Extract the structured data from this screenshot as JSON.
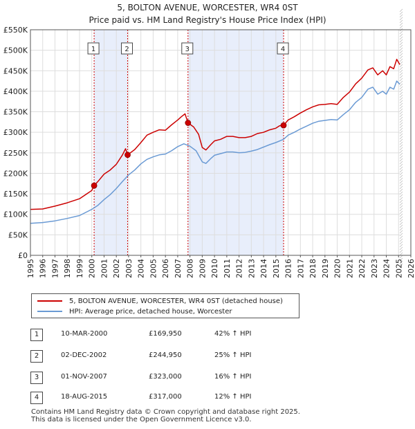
{
  "chart_data": {
    "type": "line",
    "title": "5, BOLTON AVENUE, WORCESTER, WR4 0ST",
    "subtitle": "Price paid vs. HM Land Registry's House Price Index (HPI)",
    "xlabel": "",
    "ylabel": "",
    "xlim": [
      1995,
      2026
    ],
    "ylim": [
      0,
      550000
    ],
    "x_ticks": [
      "1995",
      "1996",
      "1997",
      "1998",
      "1999",
      "2000",
      "2001",
      "2002",
      "2003",
      "2004",
      "2005",
      "2006",
      "2007",
      "2008",
      "2009",
      "2010",
      "2011",
      "2012",
      "2013",
      "2014",
      "2015",
      "2016",
      "2017",
      "2018",
      "2019",
      "2020",
      "2021",
      "2022",
      "2023",
      "2024",
      "2025",
      "2026"
    ],
    "y_ticks": [
      {
        "value": 0,
        "label": "£0"
      },
      {
        "value": 50000,
        "label": "£50K"
      },
      {
        "value": 100000,
        "label": "£100K"
      },
      {
        "value": 150000,
        "label": "£150K"
      },
      {
        "value": 200000,
        "label": "£200K"
      },
      {
        "value": 250000,
        "label": "£250K"
      },
      {
        "value": 300000,
        "label": "£300K"
      },
      {
        "value": 350000,
        "label": "£350K"
      },
      {
        "value": 400000,
        "label": "£400K"
      },
      {
        "value": 450000,
        "label": "£450K"
      },
      {
        "value": 500000,
        "label": "£500K"
      },
      {
        "value": 550000,
        "label": "£550K"
      }
    ],
    "grid": true,
    "series": [
      {
        "name": "5, BOLTON AVENUE, WORCESTER, WR4 0ST (detached house)",
        "color": "#cc0000",
        "points": [
          [
            1995.0,
            112000
          ],
          [
            1996.0,
            113000
          ],
          [
            1997.0,
            120000
          ],
          [
            1998.0,
            128000
          ],
          [
            1999.0,
            138000
          ],
          [
            2000.0,
            158000
          ],
          [
            2000.19,
            169950
          ],
          [
            2000.5,
            180000
          ],
          [
            2001.0,
            198000
          ],
          [
            2001.5,
            208000
          ],
          [
            2002.0,
            222000
          ],
          [
            2002.5,
            245000
          ],
          [
            2002.75,
            260000
          ],
          [
            2002.92,
            244950
          ],
          [
            2003.5,
            258000
          ],
          [
            2004.0,
            275000
          ],
          [
            2004.5,
            293000
          ],
          [
            2005.0,
            300000
          ],
          [
            2005.5,
            306000
          ],
          [
            2006.0,
            305000
          ],
          [
            2006.5,
            318000
          ],
          [
            2007.0,
            330000
          ],
          [
            2007.3,
            338000
          ],
          [
            2007.6,
            345000
          ],
          [
            2007.84,
            323000
          ],
          [
            2008.3,
            313000
          ],
          [
            2008.7,
            295000
          ],
          [
            2009.0,
            263000
          ],
          [
            2009.3,
            257000
          ],
          [
            2009.7,
            270000
          ],
          [
            2010.0,
            279000
          ],
          [
            2010.5,
            283000
          ],
          [
            2011.0,
            290000
          ],
          [
            2011.5,
            290000
          ],
          [
            2012.0,
            287000
          ],
          [
            2012.5,
            287000
          ],
          [
            2013.0,
            290000
          ],
          [
            2013.5,
            297000
          ],
          [
            2014.0,
            300000
          ],
          [
            2014.5,
            306000
          ],
          [
            2015.0,
            310000
          ],
          [
            2015.3,
            316000
          ],
          [
            2015.63,
            317000
          ],
          [
            2016.0,
            330000
          ],
          [
            2016.5,
            338000
          ],
          [
            2017.0,
            347000
          ],
          [
            2017.5,
            355000
          ],
          [
            2018.0,
            362000
          ],
          [
            2018.5,
            367000
          ],
          [
            2019.0,
            368000
          ],
          [
            2019.5,
            370000
          ],
          [
            2020.0,
            368000
          ],
          [
            2020.5,
            385000
          ],
          [
            2021.0,
            398000
          ],
          [
            2021.5,
            418000
          ],
          [
            2022.0,
            432000
          ],
          [
            2022.5,
            452000
          ],
          [
            2022.9,
            457000
          ],
          [
            2023.3,
            440000
          ],
          [
            2023.7,
            450000
          ],
          [
            2024.0,
            440000
          ],
          [
            2024.3,
            460000
          ],
          [
            2024.6,
            455000
          ],
          [
            2024.85,
            478000
          ],
          [
            2025.1,
            465000
          ]
        ]
      },
      {
        "name": "HPI: Average price, detached house, Worcester",
        "color": "#6a9ad4",
        "points": [
          [
            1995.0,
            78000
          ],
          [
            1996.0,
            80000
          ],
          [
            1997.0,
            84000
          ],
          [
            1998.0,
            90000
          ],
          [
            1999.0,
            97000
          ],
          [
            2000.0,
            112000
          ],
          [
            2000.5,
            122000
          ],
          [
            2001.0,
            136000
          ],
          [
            2001.5,
            148000
          ],
          [
            2002.0,
            163000
          ],
          [
            2002.5,
            180000
          ],
          [
            2003.0,
            196000
          ],
          [
            2003.5,
            208000
          ],
          [
            2004.0,
            223000
          ],
          [
            2004.5,
            234000
          ],
          [
            2005.0,
            240000
          ],
          [
            2005.5,
            245000
          ],
          [
            2006.0,
            247000
          ],
          [
            2006.5,
            255000
          ],
          [
            2007.0,
            265000
          ],
          [
            2007.5,
            272000
          ],
          [
            2008.0,
            266000
          ],
          [
            2008.5,
            255000
          ],
          [
            2009.0,
            228000
          ],
          [
            2009.3,
            224000
          ],
          [
            2009.7,
            236000
          ],
          [
            2010.0,
            244000
          ],
          [
            2010.5,
            248000
          ],
          [
            2011.0,
            252000
          ],
          [
            2011.5,
            252000
          ],
          [
            2012.0,
            250000
          ],
          [
            2012.5,
            251000
          ],
          [
            2013.0,
            254000
          ],
          [
            2013.5,
            258000
          ],
          [
            2014.0,
            264000
          ],
          [
            2014.5,
            270000
          ],
          [
            2015.0,
            275000
          ],
          [
            2015.63,
            283000
          ],
          [
            2016.0,
            293000
          ],
          [
            2016.5,
            300000
          ],
          [
            2017.0,
            308000
          ],
          [
            2017.5,
            315000
          ],
          [
            2018.0,
            322000
          ],
          [
            2018.5,
            327000
          ],
          [
            2019.0,
            329000
          ],
          [
            2019.5,
            331000
          ],
          [
            2020.0,
            330000
          ],
          [
            2020.5,
            343000
          ],
          [
            2021.0,
            355000
          ],
          [
            2021.5,
            373000
          ],
          [
            2022.0,
            385000
          ],
          [
            2022.5,
            405000
          ],
          [
            2022.9,
            410000
          ],
          [
            2023.3,
            393000
          ],
          [
            2023.7,
            400000
          ],
          [
            2024.0,
            393000
          ],
          [
            2024.3,
            410000
          ],
          [
            2024.6,
            405000
          ],
          [
            2024.85,
            425000
          ],
          [
            2025.1,
            417000
          ]
        ]
      }
    ],
    "sales": [
      {
        "label": "1",
        "year": 2000.19,
        "price": 169950,
        "date": "10-MAR-2000",
        "price_text": "£169,950",
        "hpi": "42% ↑ HPI"
      },
      {
        "label": "2",
        "year": 2002.92,
        "price": 244950,
        "date": "02-DEC-2002",
        "price_text": "£244,950",
        "hpi": "25% ↑ HPI"
      },
      {
        "label": "3",
        "year": 2007.84,
        "price": 323000,
        "date": "01-NOV-2007",
        "price_text": "£323,000",
        "hpi": "16% ↑ HPI"
      },
      {
        "label": "4",
        "year": 2015.63,
        "price": 317000,
        "date": "18-AUG-2015",
        "price_text": "£317,000",
        "hpi": "12% ↑ HPI"
      }
    ],
    "shaded_ranges": [
      [
        2000.19,
        2002.92
      ],
      [
        2007.84,
        2015.63
      ]
    ],
    "forecast_start": 2025.1,
    "colors": {
      "shade": "#e8eefb",
      "grid": "#dddddd",
      "marker": "#cc0000",
      "frame": "#555555"
    }
  },
  "legend": {
    "items": [
      {
        "label": "5, BOLTON AVENUE, WORCESTER, WR4 0ST (detached house)",
        "color": "#cc0000"
      },
      {
        "label": "HPI: Average price, detached house, Worcester",
        "color": "#6a9ad4"
      }
    ]
  },
  "footer": {
    "line1": "Contains HM Land Registry data © Crown copyright and database right 2025.",
    "line2": "This data is licensed under the Open Government Licence v3.0."
  }
}
